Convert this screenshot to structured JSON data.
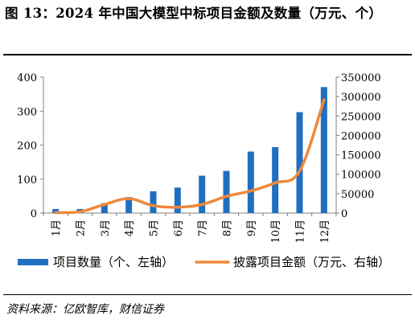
{
  "figure": {
    "title": "图 13：2024 年中国大模型中标项目金额及数量（万元、个）",
    "source": "资料来源：亿欧智库，财信证券"
  },
  "chart_data": {
    "type": "bar+line",
    "categories": [
      "1月",
      "2月",
      "3月",
      "4月",
      "5月",
      "6月",
      "7月",
      "8月",
      "9月",
      "10月",
      "11月",
      "12月"
    ],
    "series": [
      {
        "name": "项目数量（个、左轴）",
        "type": "bar",
        "axis": "left",
        "color": "#1f6fc1",
        "values": [
          12,
          12,
          29,
          47,
          64,
          75,
          110,
          124,
          181,
          194,
          297,
          371
        ]
      },
      {
        "name": "披露项目金额（万元、右轴）",
        "type": "line",
        "axis": "right",
        "color": "#f0883a",
        "values": [
          1000,
          3500,
          22000,
          37000,
          19000,
          15000,
          22000,
          43000,
          57000,
          78000,
          108000,
          292000
        ]
      }
    ],
    "y_left": {
      "min": 0,
      "max": 400,
      "ticks": [
        0,
        100,
        200,
        300,
        400
      ]
    },
    "y_right": {
      "min": 0,
      "max": 350000,
      "ticks": [
        0,
        50000,
        100000,
        150000,
        200000,
        250000,
        300000,
        350000
      ]
    },
    "grid": false,
    "legend_position": "bottom"
  }
}
